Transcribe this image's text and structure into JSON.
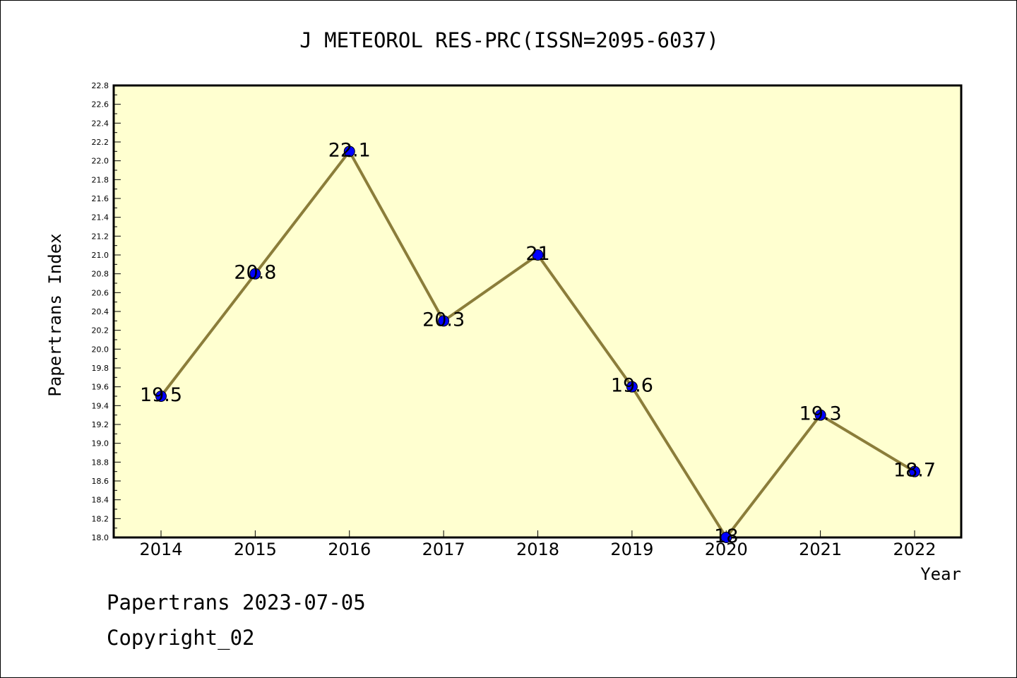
{
  "chart_data": {
    "type": "line",
    "title": "J METEOROL RES-PRC(ISSN=2095-6037)",
    "xlabel": "Year",
    "ylabel": "Papertrans Index",
    "categories": [
      "2014",
      "2015",
      "2016",
      "2017",
      "2018",
      "2019",
      "2020",
      "2021",
      "2022"
    ],
    "values": [
      19.5,
      20.8,
      22.1,
      20.3,
      21.0,
      19.6,
      18.0,
      19.3,
      18.7
    ],
    "data_labels": [
      "19.5",
      "20.8",
      "22.1",
      "20.3",
      "21",
      "19.6",
      "18",
      "19.3",
      "18.7"
    ],
    "ylim": [
      18.0,
      22.8
    ],
    "yticks": [
      "18.0",
      "18.2",
      "18.4",
      "18.6",
      "18.8",
      "19.0",
      "19.2",
      "19.4",
      "19.6",
      "19.8",
      "20.0",
      "20.2",
      "20.4",
      "20.6",
      "20.8",
      "21.0",
      "21.2",
      "21.4",
      "21.6",
      "21.8",
      "22.0",
      "22.2",
      "22.4",
      "22.6",
      "22.8"
    ],
    "grid": false,
    "colors": {
      "plot_background": "#ffffd0",
      "line": "#8b7d3a",
      "marker": "#0000ff"
    }
  },
  "footer": {
    "line1": "Papertrans 2023-07-05",
    "line2": "Copyright_02"
  }
}
